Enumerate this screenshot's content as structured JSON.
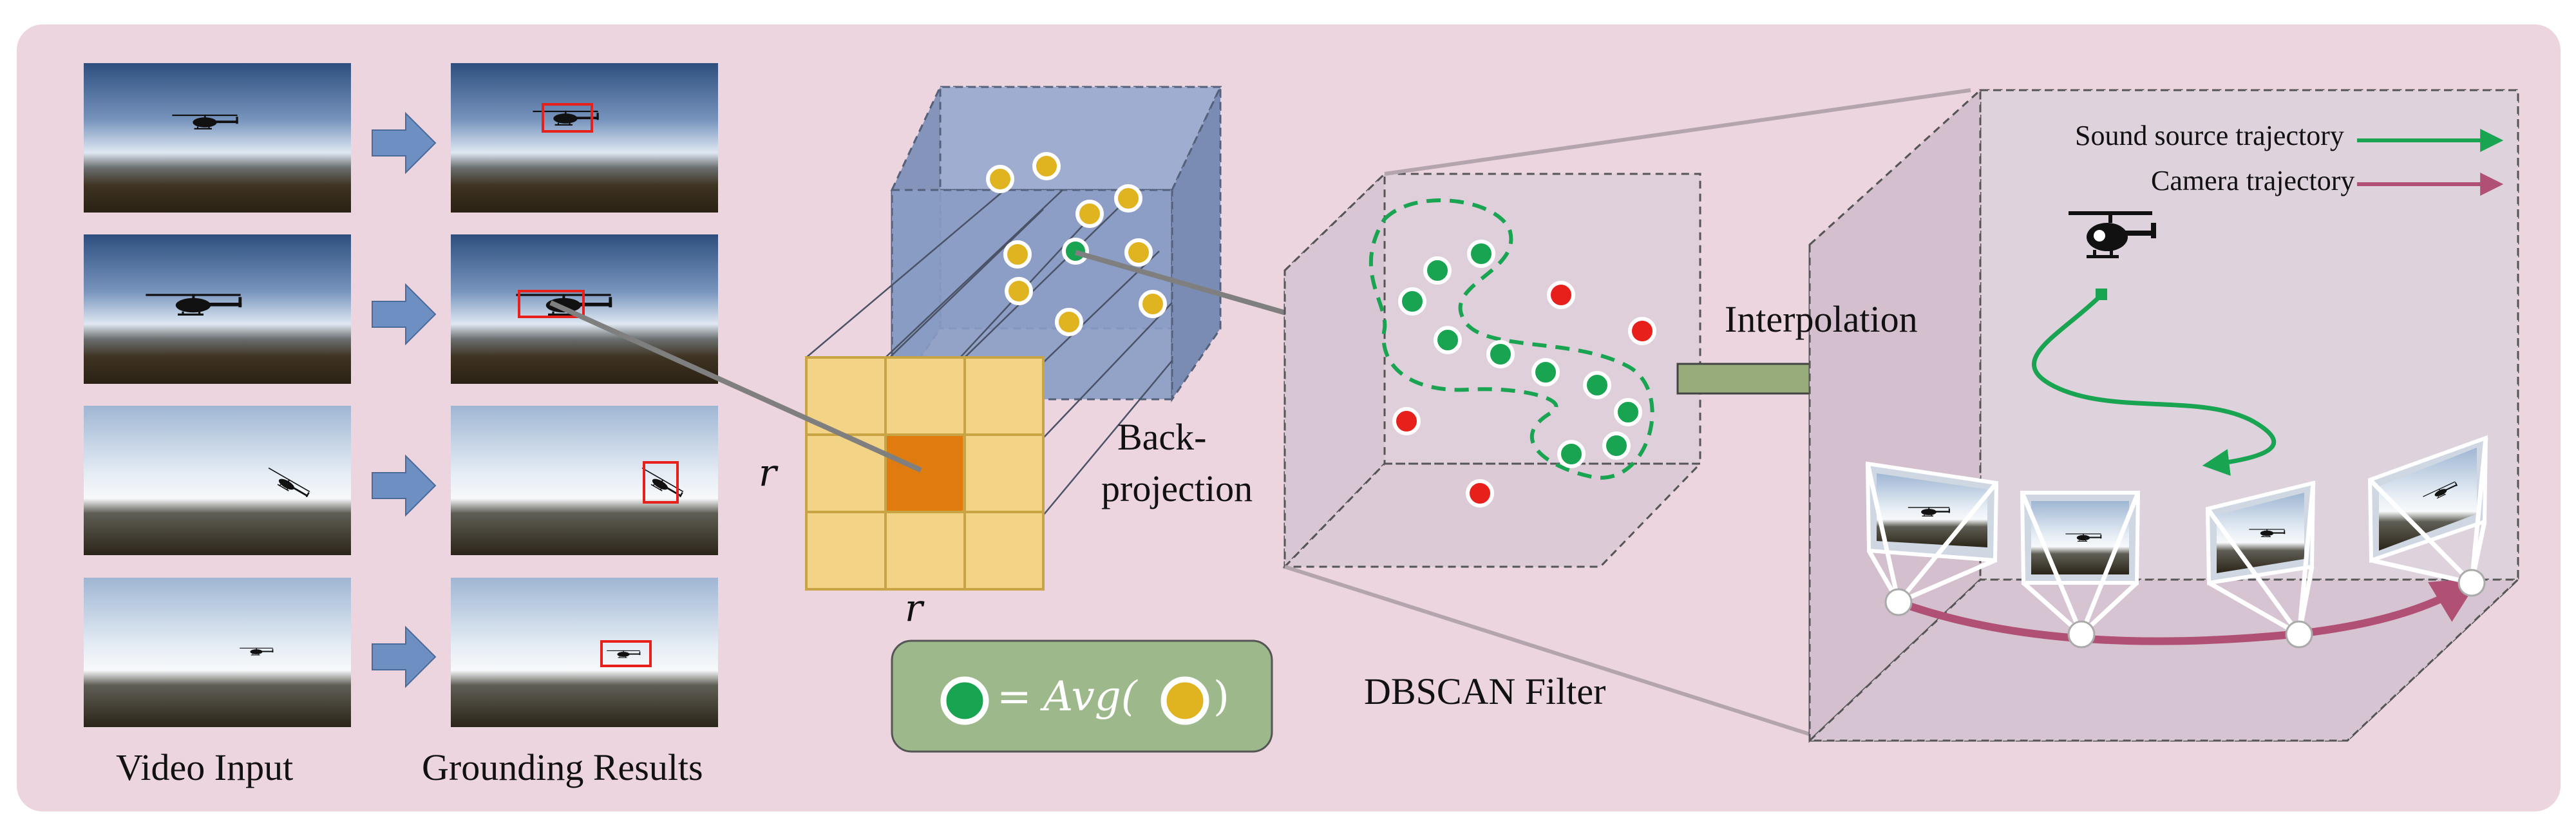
{
  "labels": {
    "video_input": "Video Input",
    "grounding_results": "Grounding Results",
    "back": "Back-",
    "projection": "projection",
    "r_left": "r",
    "r_bottom": "r",
    "dbscan": "DBSCAN Filter",
    "interpolation": "Interpolation",
    "sound_traj": "Sound source trajectory",
    "camera_traj": "Camera trajectory",
    "formula_eq": "=",
    "formula_func": "Avg(",
    "formula_close": ")"
  },
  "colors": {
    "background_panel": "#ecd5de",
    "cube_blue": "#8a9cc4",
    "cell_yellow": "#f3d486",
    "cell_orange": "#e07b10",
    "point_green": "#18a450",
    "point_yellow": "#e0b320",
    "point_red": "#e8201c",
    "camera_trajectory": "#b05075",
    "sound_trajectory": "#18a450",
    "arrow_blue": "#6d8fc2",
    "interp_arrow": "#97ab7a",
    "formula_box": "#9db88a"
  },
  "icons": {
    "frame_arrow": "right-arrow-icon",
    "helicopter": "helicopter-icon",
    "camera": "camera-frame-icon"
  }
}
